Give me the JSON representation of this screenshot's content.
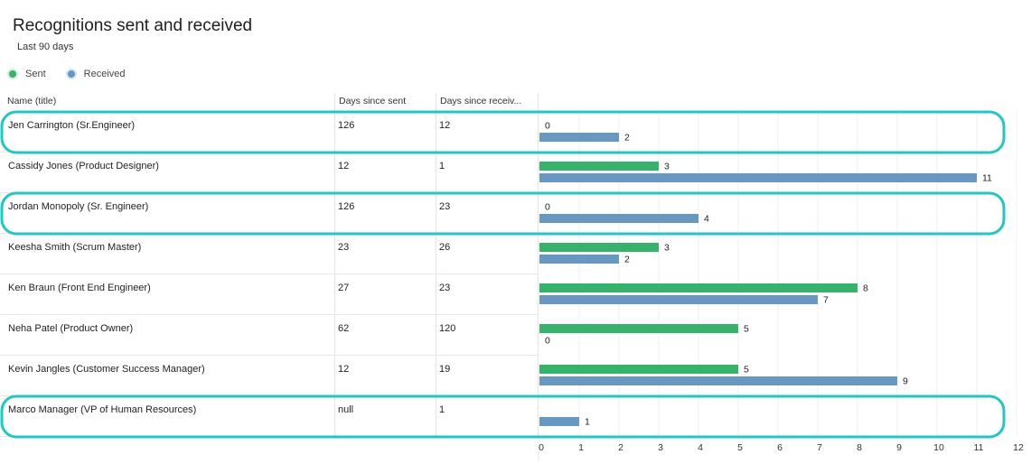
{
  "header": {
    "title": "Recognitions sent and received",
    "subtitle": "Last 90 days"
  },
  "legend": {
    "sent_label": "Sent",
    "received_label": "Received"
  },
  "columns": {
    "name": "Name (title)",
    "days_since_sent": "Days since sent",
    "days_since_received": "Days since receiv..."
  },
  "rows": [
    {
      "name": "Jen Carrington (Sr.Engineer)",
      "days_since_sent": "126",
      "days_since_received": "12",
      "highlighted": true
    },
    {
      "name": "Cassidy Jones (Product Designer)",
      "days_since_sent": "12",
      "days_since_received": "1",
      "highlighted": false
    },
    {
      "name": "Jordan Monopoly (Sr. Engineer)",
      "days_since_sent": "126",
      "days_since_received": "23",
      "highlighted": true
    },
    {
      "name": "Keesha Smith (Scrum Master)",
      "days_since_sent": "23",
      "days_since_received": "26",
      "highlighted": false
    },
    {
      "name": "Ken Braun (Front End Engineer)",
      "days_since_sent": "27",
      "days_since_received": "23",
      "highlighted": false
    },
    {
      "name": "Neha Patel (Product Owner)",
      "days_since_sent": "62",
      "days_since_received": "120",
      "highlighted": false
    },
    {
      "name": "Kevin Jangles (Customer Success Manager)",
      "days_since_sent": "12",
      "days_since_received": "19",
      "highlighted": false
    },
    {
      "name": "Marco Manager (VP of Human Resources)",
      "days_since_sent": "null",
      "days_since_received": "1",
      "highlighted": true
    }
  ],
  "colors": {
    "sent": "#35b36a",
    "received": "#6797c3",
    "highlight": "#1fc8c2"
  },
  "chart_data": {
    "type": "bar",
    "orientation": "horizontal",
    "categories": [
      "Jen Carrington (Sr.Engineer)",
      "Cassidy Jones (Product Designer)",
      "Jordan Monopoly (Sr. Engineer)",
      "Keesha Smith (Scrum Master)",
      "Ken Braun (Front End Engineer)",
      "Neha Patel (Product Owner)",
      "Kevin Jangles (Customer Success Manager)",
      "Marco Manager (VP of Human Resources)"
    ],
    "series": [
      {
        "name": "Sent",
        "values": [
          0,
          3,
          0,
          3,
          8,
          5,
          5,
          null
        ]
      },
      {
        "name": "Received",
        "values": [
          2,
          11,
          4,
          2,
          7,
          0,
          9,
          1
        ]
      }
    ],
    "xlim": [
      0,
      12
    ],
    "xticks": [
      0,
      1,
      2,
      3,
      4,
      5,
      6,
      7,
      8,
      9,
      10,
      11,
      12
    ],
    "grid": true
  }
}
